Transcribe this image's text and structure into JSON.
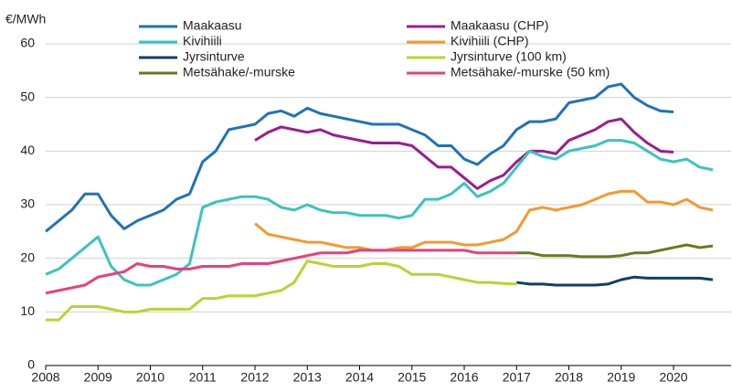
{
  "chart_data": {
    "type": "line",
    "ylabel": "€/MWh",
    "xlim": [
      2008,
      2021.1
    ],
    "xticks": [
      2008,
      2009,
      2010,
      2011,
      2012,
      2013,
      2014,
      2015,
      2016,
      2017,
      2018,
      2019,
      2020
    ],
    "ylim": [
      0,
      60
    ],
    "yticks": [
      0,
      10,
      20,
      30,
      40,
      50,
      60
    ],
    "grid": true,
    "x": [
      2008,
      2008.25,
      2008.5,
      2008.75,
      2009,
      2009.25,
      2009.5,
      2009.75,
      2010,
      2010.25,
      2010.5,
      2010.75,
      2011,
      2011.25,
      2011.5,
      2011.75,
      2012,
      2012.25,
      2012.5,
      2012.75,
      2013,
      2013.25,
      2013.5,
      2013.75,
      2014,
      2014.25,
      2014.5,
      2014.75,
      2015,
      2015.25,
      2015.5,
      2015.75,
      2016,
      2016.25,
      2016.5,
      2016.75,
      2017,
      2017.25,
      2017.5,
      2017.75,
      2018,
      2018.25,
      2018.5,
      2018.75,
      2019,
      2019.25,
      2019.5,
      2019.75,
      2020,
      2020.25,
      2020.5,
      2020.75
    ],
    "series": [
      {
        "name": "Maakaasu",
        "color": "#1f73b7",
        "values": [
          25,
          27,
          29,
          32,
          32,
          28,
          25.5,
          27,
          28,
          29,
          31,
          32,
          38,
          40,
          44,
          44.5,
          45,
          47,
          47.5,
          46.5,
          48,
          47,
          46.5,
          46,
          45.5,
          45,
          45,
          45,
          44,
          43,
          41,
          41,
          38.5,
          37.5,
          39.5,
          41,
          44,
          45.5,
          45.5,
          46,
          49,
          49.5,
          50,
          52,
          52.5,
          50,
          48.5,
          47.5,
          47.3,
          null,
          null,
          null
        ]
      },
      {
        "name": "Maakaasu (CHP)",
        "color": "#9c1d8f",
        "values": [
          null,
          null,
          null,
          null,
          null,
          null,
          null,
          null,
          null,
          null,
          null,
          null,
          null,
          null,
          null,
          null,
          42,
          43.5,
          44.5,
          44,
          43.5,
          44,
          43,
          42.5,
          42,
          41.5,
          41.5,
          41.5,
          41,
          39,
          37,
          37,
          35,
          33,
          34.5,
          35.5,
          38,
          40,
          40,
          39.5,
          42,
          43,
          44,
          45.5,
          46,
          43.5,
          41.5,
          40,
          39.8,
          null,
          null,
          null
        ]
      },
      {
        "name": "Kivihiili",
        "color": "#3cc3bd",
        "values": [
          17,
          18,
          20,
          22,
          24,
          18.5,
          16,
          15,
          15,
          16,
          17,
          19,
          29.5,
          30.5,
          31,
          31.5,
          31.5,
          31,
          29.5,
          29,
          30,
          29,
          28.5,
          28.5,
          28,
          28,
          28,
          27.5,
          28,
          31,
          31,
          32,
          34,
          31.5,
          32.5,
          34,
          37,
          40,
          39,
          38.5,
          40,
          40.5,
          41,
          42,
          42,
          41.5,
          40,
          38.5,
          38,
          38.5,
          37,
          36.5
        ]
      },
      {
        "name": "Kivihiili (CHP)",
        "color": "#f39a2e",
        "values": [
          null,
          null,
          null,
          null,
          null,
          null,
          null,
          null,
          null,
          null,
          null,
          null,
          null,
          null,
          null,
          null,
          26.5,
          24.5,
          24,
          23.5,
          23,
          23,
          22.5,
          22,
          22,
          21.5,
          21.5,
          22,
          22,
          23,
          23,
          23,
          22.5,
          22.5,
          23,
          23.5,
          25,
          29,
          29.5,
          29,
          29.5,
          30,
          31,
          32,
          32.5,
          32.5,
          30.5,
          30.5,
          30,
          31,
          29.5,
          29
        ]
      },
      {
        "name": "Jyrsinturve",
        "color": "#0f3f66",
        "values": [
          null,
          null,
          null,
          null,
          null,
          null,
          null,
          null,
          null,
          null,
          null,
          null,
          null,
          null,
          null,
          null,
          null,
          null,
          null,
          null,
          null,
          null,
          null,
          null,
          null,
          null,
          null,
          null,
          null,
          null,
          null,
          null,
          null,
          null,
          null,
          null,
          15.5,
          15.2,
          15.2,
          15,
          15,
          15,
          15,
          15.2,
          16,
          16.5,
          16.3,
          16.3,
          16.3,
          16.3,
          16.3,
          16
        ]
      },
      {
        "name": "Jyrsinturve (100 km)",
        "color": "#b8d433",
        "values": [
          8.5,
          8.5,
          11,
          11,
          11,
          10.5,
          10,
          10,
          10.5,
          10.5,
          10.5,
          10.5,
          12.5,
          12.5,
          13,
          13,
          13,
          13.5,
          14,
          15.5,
          19.5,
          19,
          18.5,
          18.5,
          18.5,
          19,
          19,
          18.5,
          17,
          17,
          17,
          16.5,
          16,
          15.5,
          15.5,
          15.3,
          15.2,
          null,
          null,
          null,
          null,
          null,
          null,
          null,
          null,
          null,
          null,
          null,
          null,
          null,
          null,
          null
        ]
      },
      {
        "name": "Metsähake/-murske",
        "color": "#667a1e",
        "values": [
          null,
          null,
          null,
          null,
          null,
          null,
          null,
          null,
          null,
          null,
          null,
          null,
          null,
          null,
          null,
          null,
          null,
          null,
          null,
          null,
          null,
          null,
          null,
          null,
          null,
          null,
          null,
          null,
          null,
          null,
          null,
          null,
          null,
          null,
          null,
          null,
          21,
          21,
          20.5,
          20.5,
          20.5,
          20.3,
          20.3,
          20.3,
          20.5,
          21,
          21,
          21.5,
          22,
          22.5,
          22,
          22.3
        ]
      },
      {
        "name": "Metsähake/-murske (50 km)",
        "color": "#e8407a",
        "values": [
          13.5,
          14,
          14.5,
          15,
          16.5,
          17,
          17.5,
          19,
          18.5,
          18.5,
          18,
          18,
          18.5,
          18.5,
          18.5,
          19,
          19,
          19,
          19.5,
          20,
          20.5,
          21,
          21,
          21,
          21.5,
          21.5,
          21.5,
          21.5,
          21.5,
          21.5,
          21.5,
          21.5,
          21.5,
          21,
          21,
          21,
          21,
          null,
          null,
          null,
          null,
          null,
          null,
          null,
          null,
          null,
          null,
          null,
          null,
          null,
          null,
          null
        ]
      }
    ]
  }
}
